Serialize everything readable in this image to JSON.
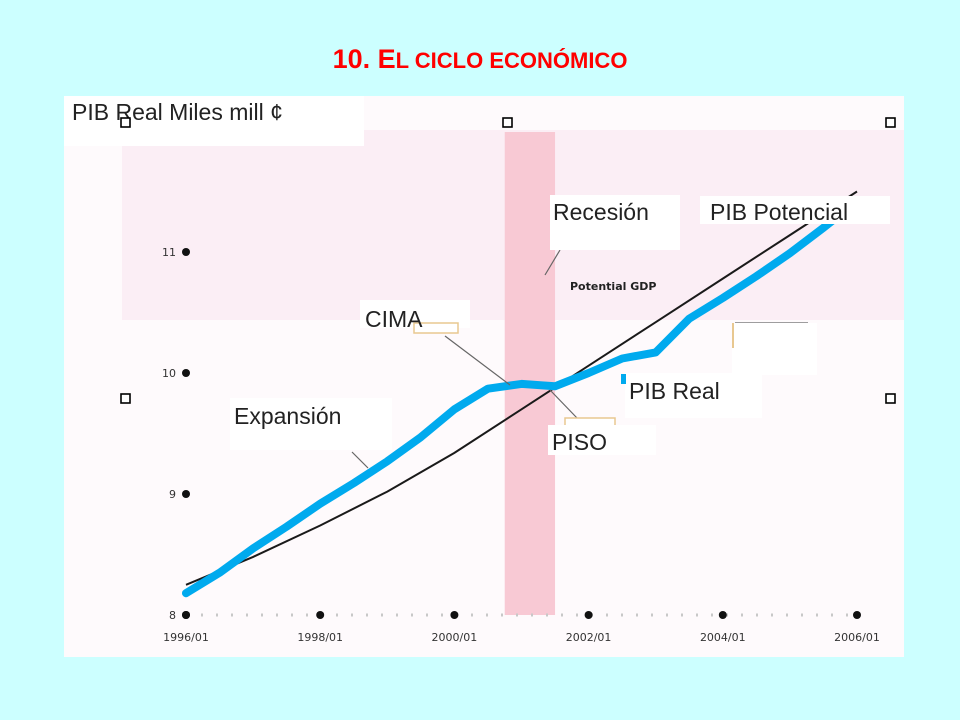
{
  "slide": {
    "title_number": "10. E",
    "title_rest": "L CICLO ECONÓMICO"
  },
  "chart_data": {
    "type": "line",
    "ylabel": "PIB Real Miles mill ¢",
    "x_ticks": [
      "1996/01",
      "1998/01",
      "2000/01",
      "2002/01",
      "2004/01",
      "2006/01"
    ],
    "y_ticks": [
      "8",
      "9",
      "10",
      "11"
    ],
    "xlim": [
      1996.0,
      2006.0
    ],
    "ylim": [
      8,
      11.5
    ],
    "recession_band": {
      "label": "Recesión",
      "start": 2000.75,
      "end": 2001.5
    },
    "series": [
      {
        "name": "PIB Potencial",
        "color": "#1a1a1a",
        "x": [
          1996.0,
          1997.0,
          1998.0,
          1999.0,
          2000.0,
          2001.0,
          2002.0,
          2003.0,
          2004.0,
          2005.0,
          2006.0
        ],
        "y": [
          8.25,
          8.48,
          8.74,
          9.02,
          9.34,
          9.7,
          10.06,
          10.42,
          10.78,
          11.14,
          11.5
        ]
      },
      {
        "name": "PIB Real",
        "color": "#00aaee",
        "x": [
          1996.0,
          1996.5,
          1997.0,
          1997.5,
          1998.0,
          1998.5,
          1999.0,
          1999.5,
          2000.0,
          2000.5,
          2001.0,
          2001.5,
          2002.0,
          2002.5,
          2003.0,
          2003.5,
          2004.0,
          2004.5,
          2005.0,
          2005.5,
          2006.0
        ],
        "y": [
          8.18,
          8.35,
          8.55,
          8.73,
          8.92,
          9.09,
          9.27,
          9.47,
          9.7,
          9.87,
          9.91,
          9.89,
          10.0,
          10.12,
          10.17,
          10.45,
          10.62,
          10.8,
          10.99,
          11.2,
          11.42
        ]
      }
    ],
    "annotations": {
      "recesion": "Recesión",
      "pib_potencial": "PIB Potencial",
      "potential_gdp": "Potential GDP",
      "cima": "CIMA",
      "piso": "PISO",
      "expansion": "Expansión",
      "pib_real": "PIB Real"
    }
  }
}
